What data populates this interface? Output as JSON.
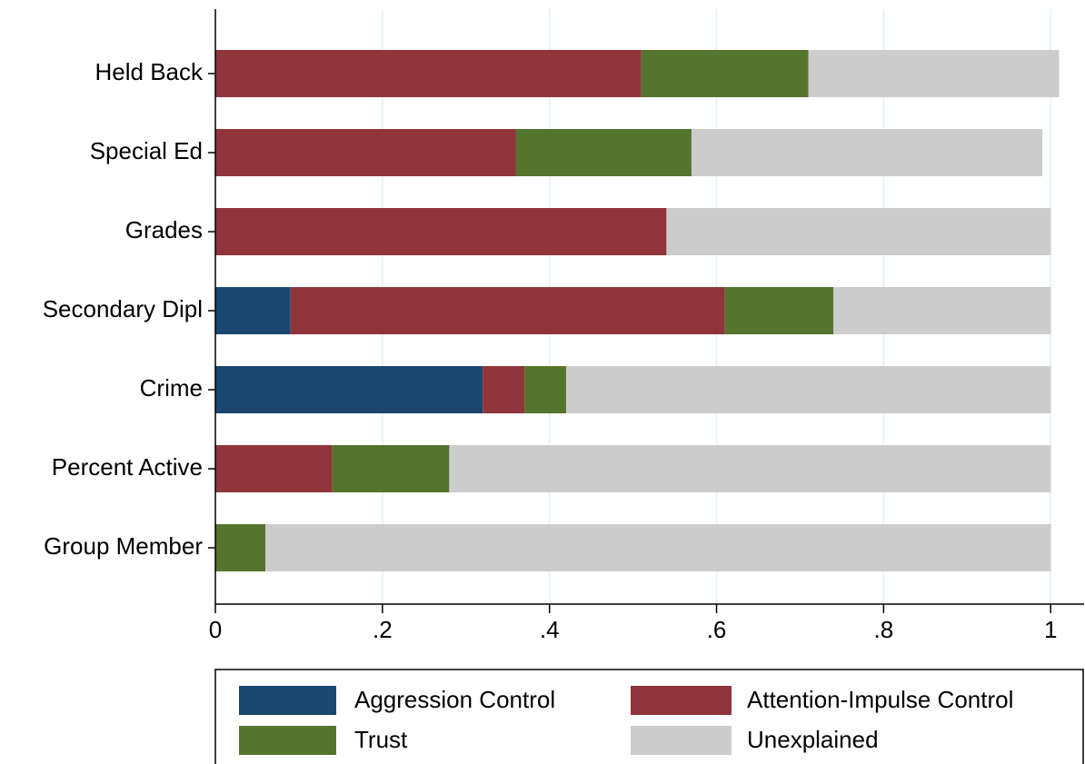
{
  "chart_data": {
    "type": "stacked_barh",
    "categories": [
      "Held Back",
      "Special Ed",
      "Grades",
      "Secondary Dipl",
      "Crime",
      "Percent Active",
      "Group Member"
    ],
    "series": [
      {
        "name": "Aggression Control",
        "color": "#1a476f",
        "values": [
          0,
          0,
          0,
          0.09,
          0.32,
          0,
          0
        ]
      },
      {
        "name": "Attention-Impulse Control",
        "color": "#90353b",
        "values": [
          0.51,
          0.36,
          0.54,
          0.52,
          0.05,
          0.14,
          0
        ]
      },
      {
        "name": "Trust",
        "color": "#55752f",
        "values": [
          0.2,
          0.21,
          0,
          0.13,
          0.05,
          0.14,
          0.06
        ]
      },
      {
        "name": "Unexplained",
        "color": "#cccccc",
        "values": [
          0.3,
          0.42,
          0.46,
          0.26,
          0.58,
          0.72,
          0.94
        ]
      }
    ],
    "xlim": [
      0,
      1.04
    ],
    "xticks": [
      0,
      {
        "value": 0.2,
        "label": ".2"
      },
      {
        "value": 0.4,
        "label": ".4"
      },
      {
        "value": 0.6,
        "label": ".6"
      },
      {
        "value": 0.8,
        "label": ".8"
      },
      1
    ],
    "grid": true,
    "legend": "bottom"
  }
}
